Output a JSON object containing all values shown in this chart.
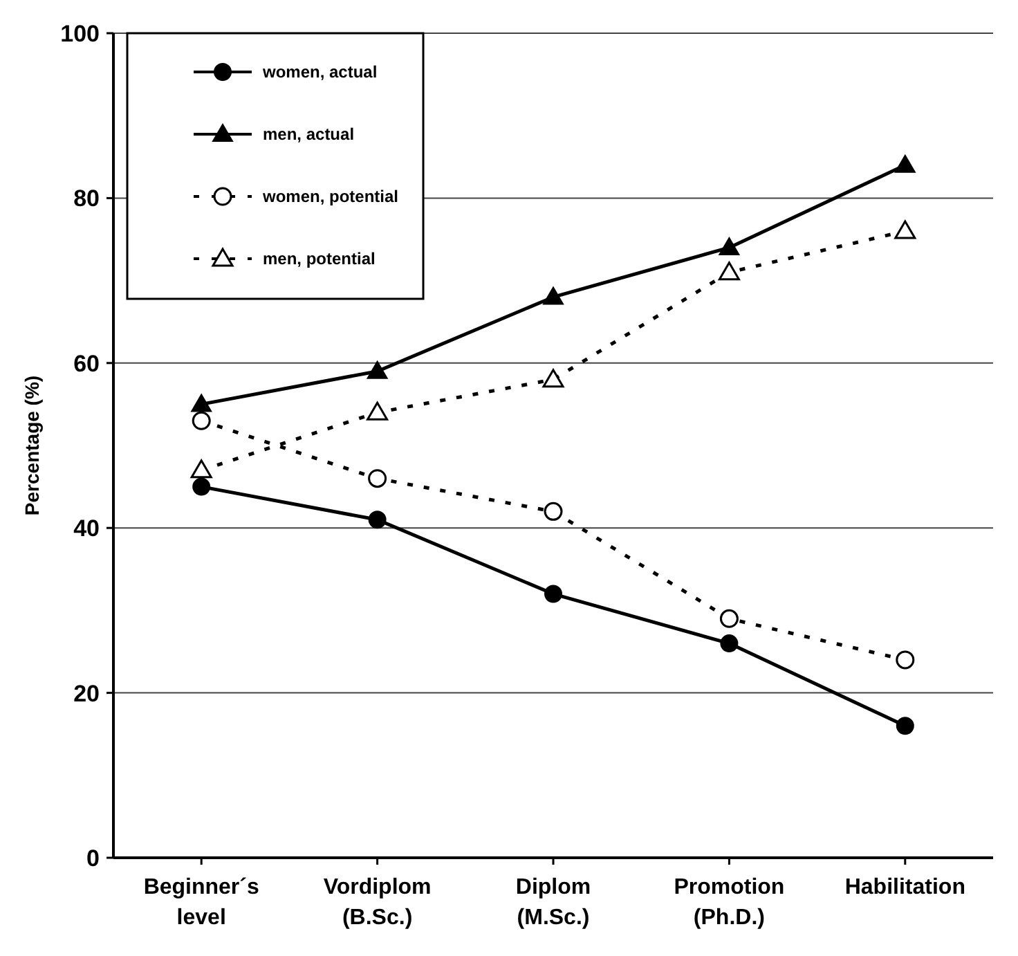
{
  "chart_data": {
    "type": "line",
    "ylabel": "Percentage (%)",
    "categories": [
      "Beginner´s\nlevel",
      "Vordiplom\n(B.Sc.)",
      "Diplom\n(M.Sc.)",
      "Promotion\n(Ph.D.)",
      "Habilitation"
    ],
    "series": [
      {
        "name": "women, actual",
        "color": "#000000",
        "marker": "circle",
        "line_style": "solid",
        "values": [
          45,
          41,
          32,
          26,
          16
        ]
      },
      {
        "name": "men, actual",
        "color": "#000000",
        "marker": "triangle",
        "line_style": "solid",
        "values": [
          55,
          59,
          68,
          74,
          84
        ]
      },
      {
        "name": "women, potential",
        "color": "#000000",
        "marker": "circle",
        "line_style": "dotted",
        "values": [
          53,
          46,
          42,
          29,
          24
        ]
      },
      {
        "name": "men, potential",
        "color": "#000000",
        "marker": "triangle",
        "line_style": "dotted",
        "values": [
          47,
          54,
          58,
          71,
          76
        ]
      }
    ],
    "ylim": [
      0,
      100
    ],
    "yticks": [
      0,
      20,
      40,
      60,
      80,
      100
    ],
    "grid": "y",
    "legend": "top left"
  }
}
